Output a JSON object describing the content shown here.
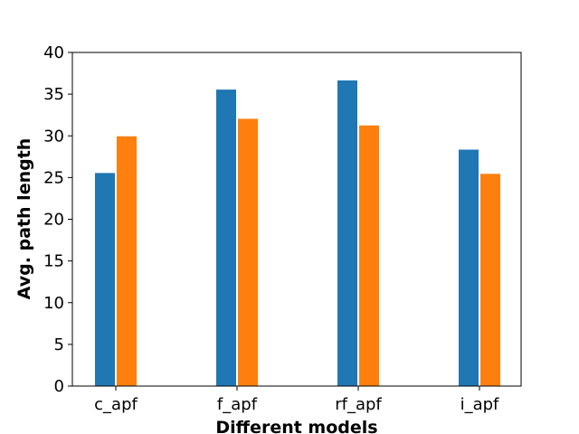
{
  "chart_data": {
    "type": "bar",
    "categories": [
      "c_apf",
      "f_apf",
      "rf_apf",
      "i_apf"
    ],
    "series": [
      {
        "values": [
          25.6,
          35.6,
          36.7,
          28.4
        ],
        "color": "#1f77b4"
      },
      {
        "values": [
          30.0,
          32.1,
          31.3,
          25.5
        ],
        "color": "#ff7f0e"
      }
    ],
    "xlabel": "Different models",
    "ylabel": "Avg. path length",
    "ylim": [
      0,
      40
    ],
    "yticks": [
      "0",
      "5",
      "10",
      "15",
      "20",
      "25",
      "30",
      "35",
      "40"
    ],
    "grid": false,
    "legend": false
  }
}
